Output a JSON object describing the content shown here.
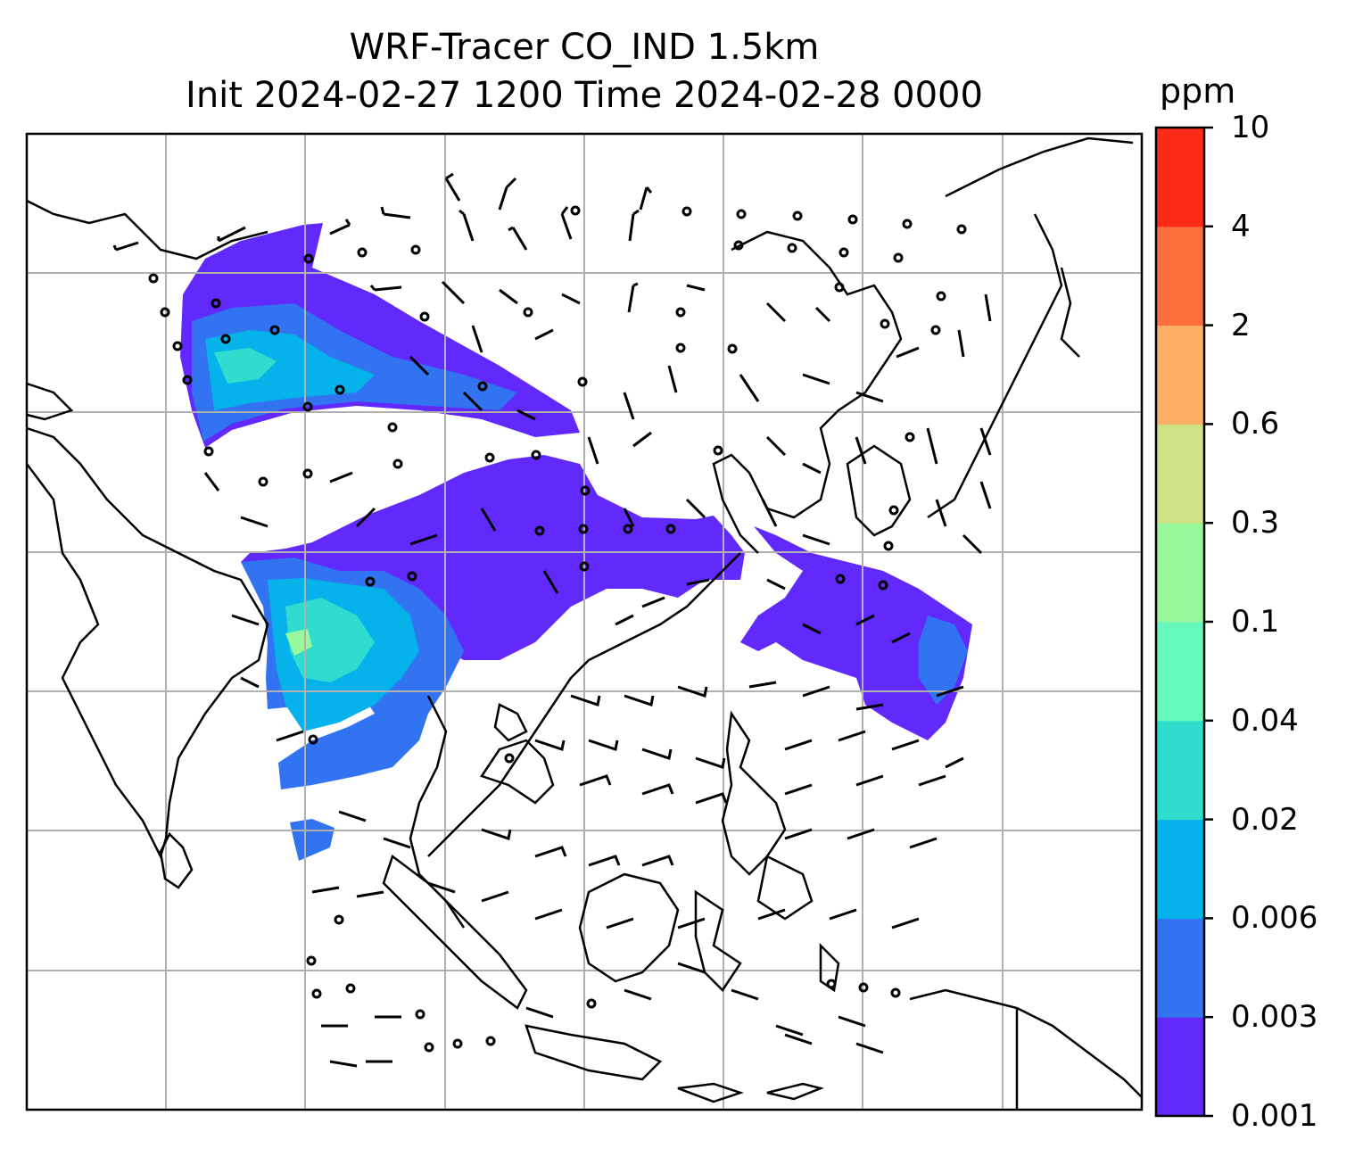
{
  "title": {
    "line1": "WRF-Tracer CO_IND 1.5km",
    "line2": "Init 2024-02-27 1200 Time 2024-02-28 0000"
  },
  "colorbar": {
    "unit": "ppm",
    "levels": [
      "0.001",
      "0.003",
      "0.006",
      "0.02",
      "0.04",
      "0.1",
      "0.3",
      "0.6",
      "2",
      "4",
      "10"
    ],
    "colors": [
      "#6129fb",
      "#3173f1",
      "#05b2ea",
      "#30dccd",
      "#66f9bd",
      "#98f89b",
      "#cfe386",
      "#fdb064",
      "#fd6f3c",
      "#fd2a17"
    ]
  },
  "map": {
    "land_outline_color": "#000000",
    "gridline_color": "#b0b0b0",
    "wind_barb_color": "#000000",
    "field": "CO_IND tracer concentration",
    "overlay": "wind barbs"
  }
}
